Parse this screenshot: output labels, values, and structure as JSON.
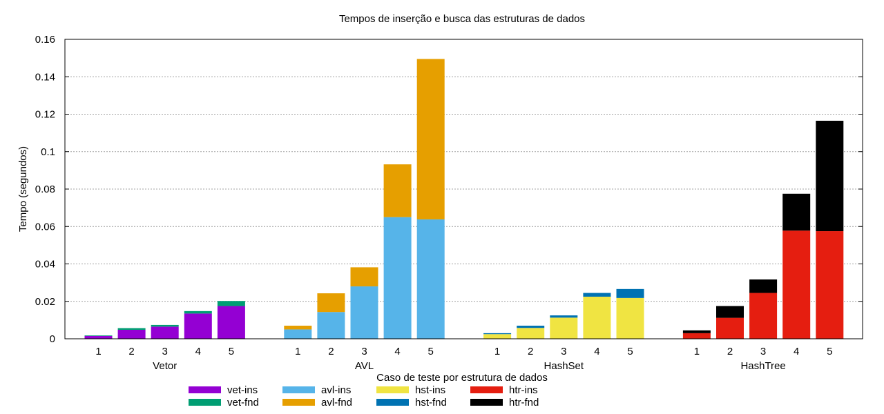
{
  "chart_data": {
    "type": "bar",
    "stacked": true,
    "title": "Tempos de inserção e busca das estruturas de dados",
    "xlabel": "Caso de teste por estrutura de dados",
    "ylabel": "Tempo (segundos)",
    "ylim": [
      0,
      0.16
    ],
    "yticks": [
      "0",
      "0.02",
      "0.04",
      "0.06",
      "0.08",
      "0.1",
      "0.12",
      "0.14",
      "0.16"
    ],
    "grid": true,
    "legend_position": "bottom",
    "categories": [
      "1",
      "2",
      "3",
      "4",
      "5"
    ],
    "groups": [
      {
        "name": "Vetor",
        "series": [
          {
            "name": "vet-ins",
            "color": "#9400d3",
            "values": [
              0.0015,
              0.0048,
              0.0065,
              0.0135,
              0.0175
            ]
          },
          {
            "name": "vet-fnd",
            "color": "#009e73",
            "values": [
              0.0003,
              0.0009,
              0.0009,
              0.0013,
              0.0027
            ]
          }
        ]
      },
      {
        "name": "AVL",
        "series": [
          {
            "name": "avl-ins",
            "color": "#56b4e9",
            "values": [
              0.005,
              0.0143,
              0.028,
              0.065,
              0.0638
            ]
          },
          {
            "name": "avl-fnd",
            "color": "#e69f00",
            "values": [
              0.002,
              0.01,
              0.0102,
              0.0282,
              0.0857
            ]
          }
        ]
      },
      {
        "name": "HashSet",
        "series": [
          {
            "name": "hst-ins",
            "color": "#f0e442",
            "values": [
              0.0025,
              0.0058,
              0.0113,
              0.0225,
              0.0218
            ]
          },
          {
            "name": "hst-fnd",
            "color": "#0072b2",
            "values": [
              0.0005,
              0.0012,
              0.0012,
              0.002,
              0.0048
            ]
          }
        ]
      },
      {
        "name": "HashTree",
        "series": [
          {
            "name": "htr-ins",
            "color": "#e51e10",
            "values": [
              0.003,
              0.0112,
              0.0245,
              0.0578,
              0.0575
            ]
          },
          {
            "name": "htr-fnd",
            "color": "#000000",
            "values": [
              0.0015,
              0.0063,
              0.0072,
              0.0197,
              0.059
            ]
          }
        ]
      }
    ]
  }
}
